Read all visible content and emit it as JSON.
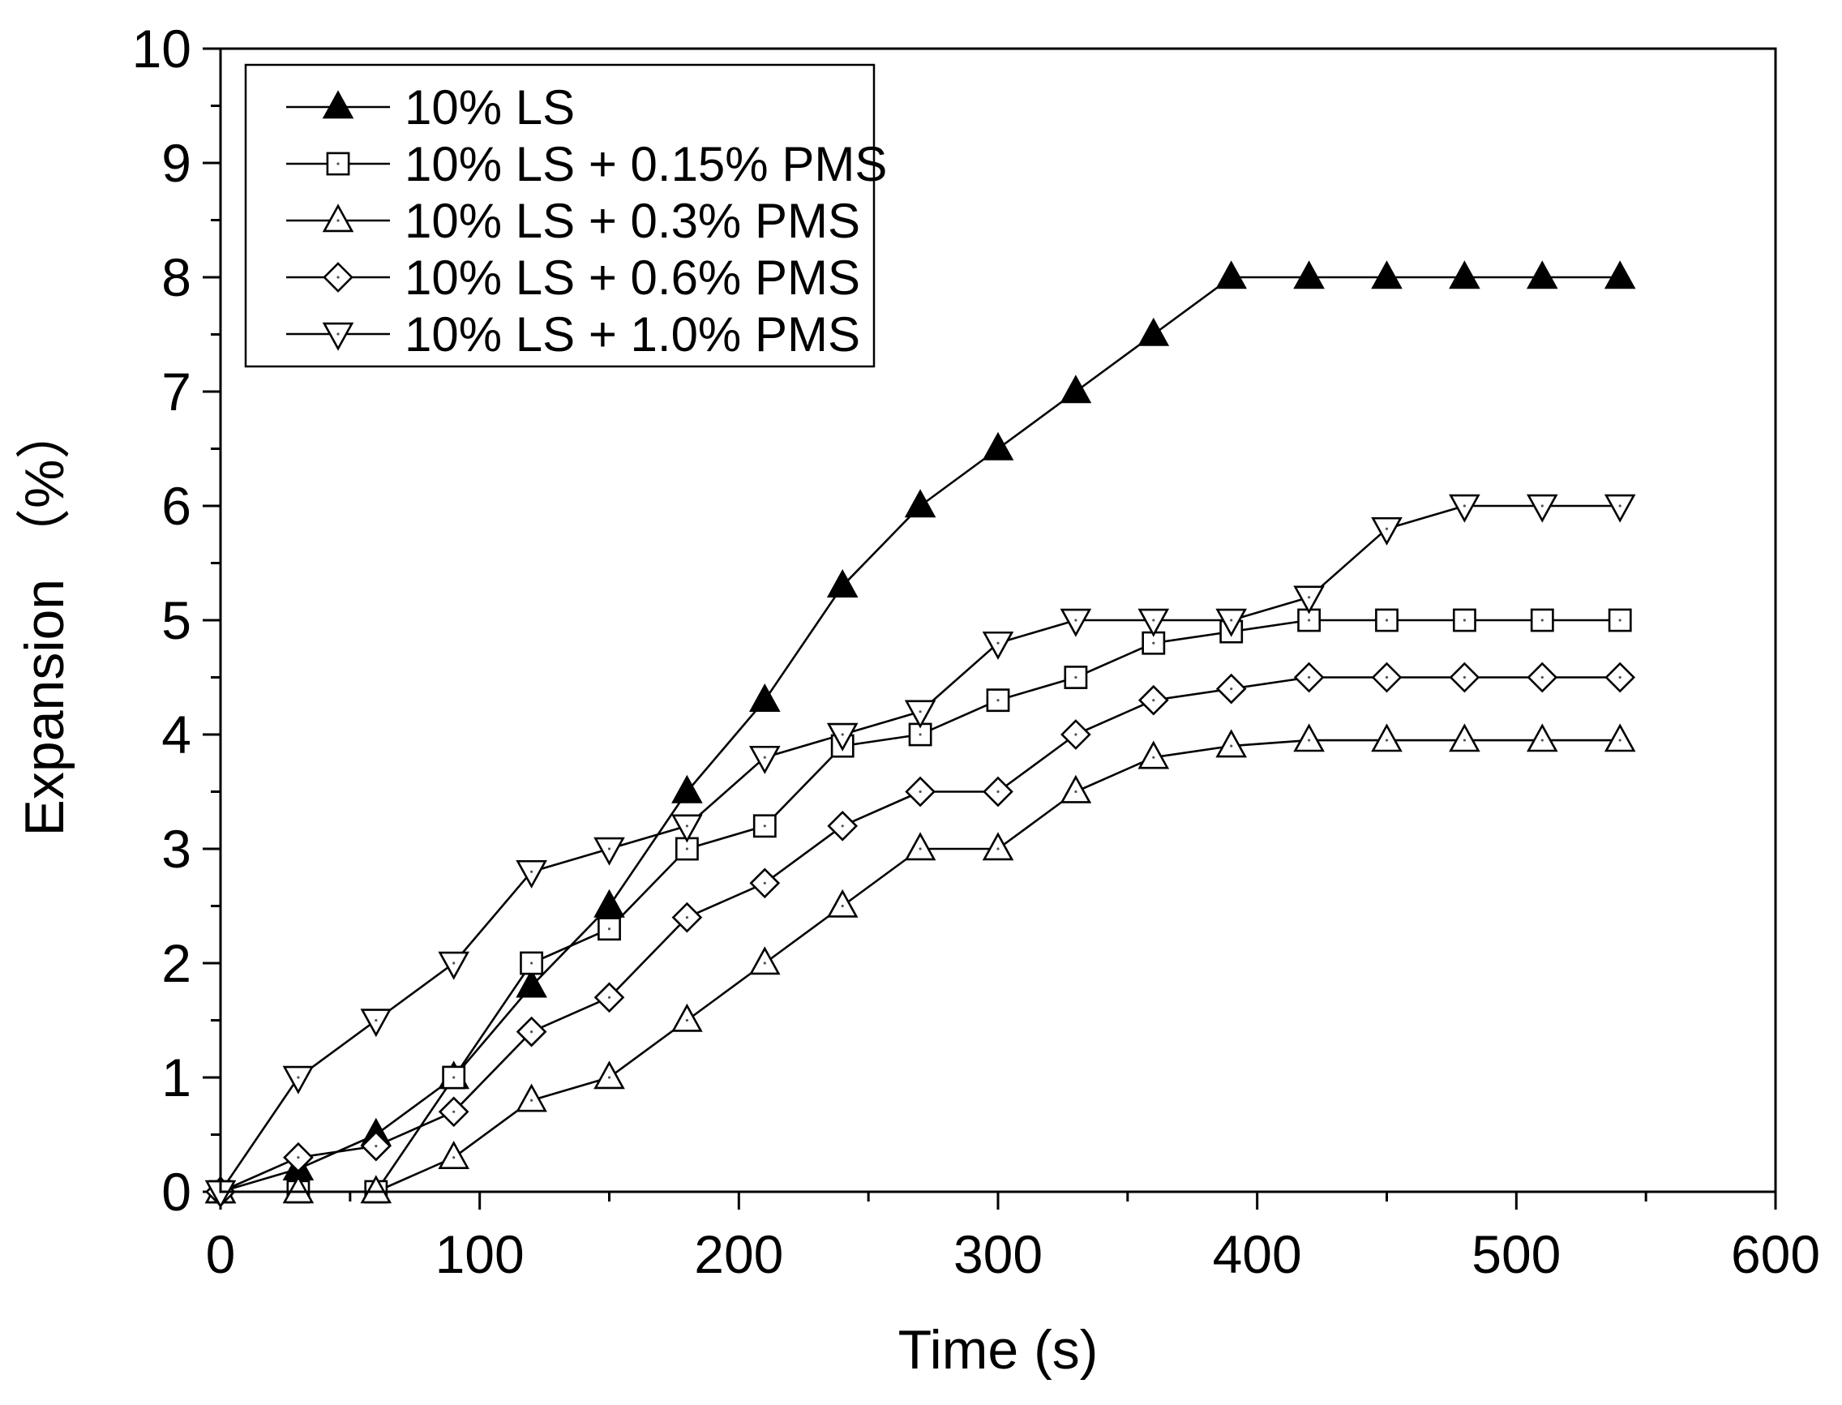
{
  "chart_data": {
    "type": "line",
    "title": "",
    "xlabel": "Time (s)",
    "ylabel": "Expansion （%）",
    "xlim": [
      0,
      600
    ],
    "ylim": [
      0,
      10
    ],
    "xticks": [
      0,
      100,
      200,
      300,
      400,
      500,
      600
    ],
    "yticks": [
      0,
      1,
      2,
      3,
      4,
      5,
      6,
      7,
      8,
      9,
      10
    ],
    "x_minor_step": 50,
    "y_minor_step": 0.5,
    "grid": false,
    "legend_position": "top-left",
    "colors": {
      "line": "#000000",
      "marker_fill_open": "#ffffff",
      "marker_fill_solid": "#000000"
    },
    "series": [
      {
        "name": "10% LS",
        "marker": "triangle-up-filled",
        "x": [
          0,
          30,
          60,
          90,
          120,
          150,
          180,
          210,
          240,
          270,
          300,
          330,
          360,
          390,
          420,
          450,
          480,
          510,
          540
        ],
        "values": [
          0,
          0.2,
          0.5,
          1.0,
          1.8,
          2.5,
          3.5,
          4.3,
          5.3,
          6.0,
          6.5,
          7.0,
          7.5,
          8.0,
          8.0,
          8.0,
          8.0,
          8.0,
          8.0
        ]
      },
      {
        "name": "10% LS + 0.15% PMS",
        "marker": "square-open",
        "x": [
          0,
          30,
          60,
          90,
          120,
          150,
          180,
          210,
          240,
          270,
          300,
          330,
          360,
          390,
          420,
          450,
          480,
          510,
          540
        ],
        "values": [
          0,
          0,
          0,
          1.0,
          2.0,
          2.3,
          3.0,
          3.2,
          3.9,
          4.0,
          4.3,
          4.5,
          4.8,
          4.9,
          5.0,
          5.0,
          5.0,
          5.0,
          5.0
        ]
      },
      {
        "name": "10% LS + 0.3% PMS",
        "marker": "triangle-up-open",
        "x": [
          0,
          30,
          60,
          90,
          120,
          150,
          180,
          210,
          240,
          270,
          300,
          330,
          360,
          390,
          420,
          450,
          480,
          510,
          540
        ],
        "values": [
          0,
          0,
          0,
          0.3,
          0.8,
          1.0,
          1.5,
          2.0,
          2.5,
          3.0,
          3.0,
          3.5,
          3.8,
          3.9,
          3.95,
          3.95,
          3.95,
          3.95,
          3.95
        ]
      },
      {
        "name": "10% LS + 0.6% PMS",
        "marker": "diamond-open",
        "x": [
          0,
          30,
          60,
          90,
          120,
          150,
          180,
          210,
          240,
          270,
          300,
          330,
          360,
          390,
          420,
          450,
          480,
          510,
          540
        ],
        "values": [
          0,
          0.3,
          0.4,
          0.7,
          1.4,
          1.7,
          2.4,
          2.7,
          3.2,
          3.5,
          3.5,
          4.0,
          4.3,
          4.4,
          4.5,
          4.5,
          4.5,
          4.5,
          4.5
        ]
      },
      {
        "name": "10% LS + 1.0% PMS",
        "marker": "triangle-down-open",
        "x": [
          0,
          30,
          60,
          90,
          120,
          150,
          180,
          210,
          240,
          270,
          300,
          330,
          360,
          390,
          420,
          450,
          480,
          510,
          540
        ],
        "values": [
          0,
          1.0,
          1.5,
          2.0,
          2.8,
          3.0,
          3.2,
          3.8,
          4.0,
          4.2,
          4.8,
          5.0,
          5.0,
          5.0,
          5.2,
          5.8,
          6.0,
          6.0,
          6.0
        ]
      }
    ]
  }
}
